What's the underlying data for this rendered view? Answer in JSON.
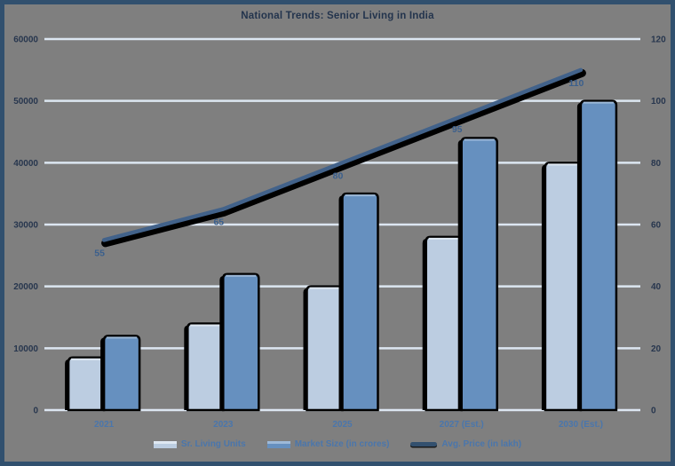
{
  "title": "National Trends: Senior Living in India",
  "colors": {
    "background": "#7f7f7f",
    "frame_border": "#31506e",
    "gridline": "#dce6f1",
    "bar_light": "#bccde1",
    "bar_light_highlight": "#dfe8f2",
    "bar_dark": "#6690bf",
    "bar_dark_highlight": "#9db9d8",
    "bar_outline": "#000000",
    "line": "#42628a",
    "line_shadow": "#000000",
    "title_text": "#23344d",
    "axis_text": "#27364e",
    "category_text": "#4a76ac",
    "data_label_text": "#3a5f8d"
  },
  "chart_data": {
    "type": "combo",
    "title": "National Trends: Senior Living in India",
    "categories": [
      "2021",
      "2023",
      "2025",
      "2027 (Est.)",
      "2030 (Est.)"
    ],
    "series": [
      {
        "name": "Sr. Living Units",
        "type": "bar",
        "axis": "left",
        "values": [
          8500,
          14000,
          20000,
          28000,
          40000
        ],
        "color": "#bccde1"
      },
      {
        "name": "Market Size (in crores)",
        "type": "bar",
        "axis": "left",
        "values": [
          12000,
          22000,
          35000,
          44000,
          50000
        ],
        "color": "#6690bf"
      },
      {
        "name": "Avg. Price (in lakh)",
        "type": "line",
        "axis": "right",
        "values": [
          55,
          65,
          80,
          95,
          110
        ],
        "color": "#42628a",
        "data_labels": [
          "55",
          "65",
          "80",
          "95",
          "110"
        ]
      }
    ],
    "left_axis": {
      "min": 0,
      "max": 60000,
      "step": 10000,
      "ticks": [
        "0",
        "10000",
        "20000",
        "30000",
        "40000",
        "50000",
        "60000"
      ]
    },
    "right_axis": {
      "min": 0,
      "max": 120,
      "step": 20,
      "ticks": [
        "0",
        "20",
        "40",
        "60",
        "80",
        "100",
        "120"
      ]
    },
    "grid": true,
    "legend_position": "bottom"
  }
}
